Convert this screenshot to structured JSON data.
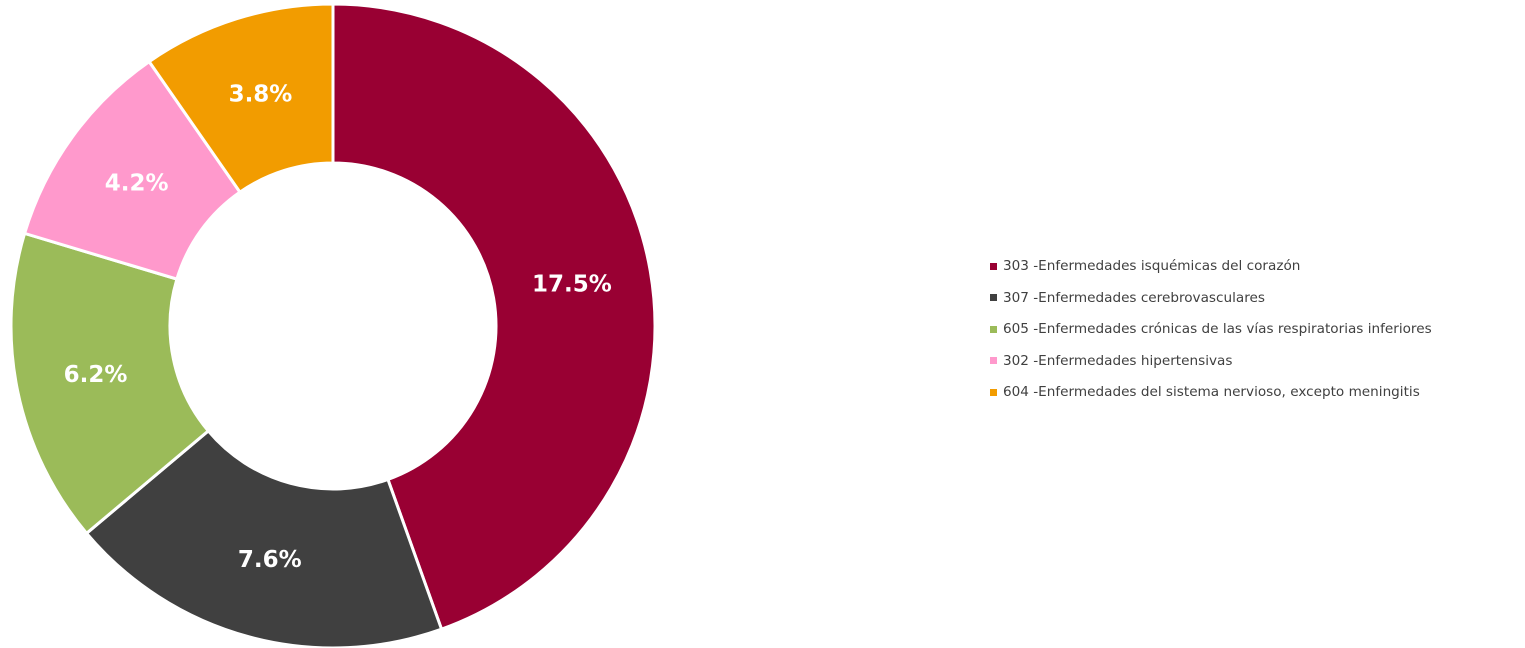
{
  "chart_data": {
    "type": "pie",
    "donut": true,
    "legend_position": "right",
    "categories": [
      "303 -Enfermedades isquémicas del corazón",
      "307 -Enfermedades cerebrovasculares",
      "605 -Enfermedades crónicas de las vías respiratorias inferiores",
      "302 -Enfermedades hipertensivas",
      "604 -Enfermedades del sistema nervioso, excepto meningitis"
    ],
    "values": [
      17.5,
      7.6,
      6.2,
      4.2,
      3.8
    ],
    "labels": [
      "17.5%",
      "7.6%",
      "6.2%",
      "4.2%",
      "3.8%"
    ],
    "colors": [
      "#990033",
      "#404040",
      "#9BBB59",
      "#FF99CC",
      "#F29C00"
    ]
  }
}
